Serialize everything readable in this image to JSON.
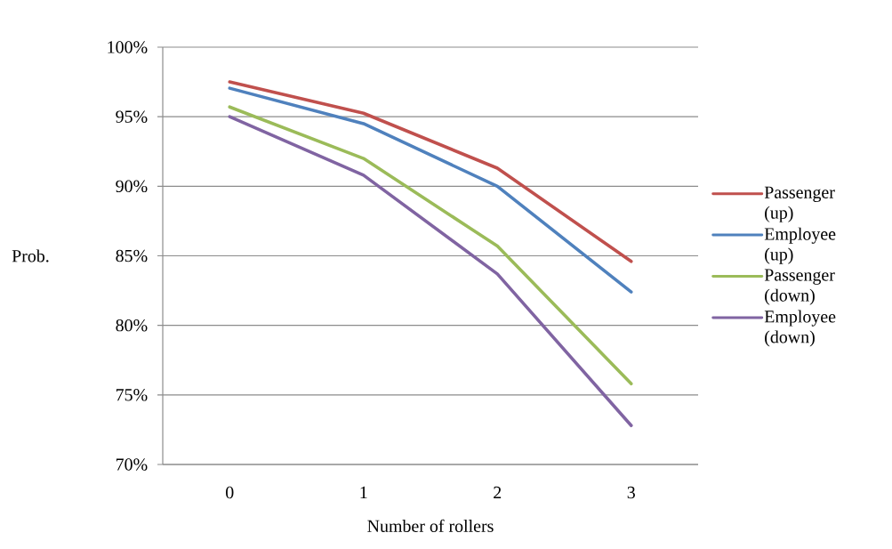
{
  "chart_data": {
    "type": "line",
    "xlabel": "Number of rollers",
    "ylabel": "Prob.",
    "categories": [
      "0",
      "1",
      "2",
      "3"
    ],
    "series": [
      {
        "name": "Passenger (up)",
        "color": "#c0504d",
        "values": [
          97.5,
          95.25,
          91.3,
          84.6
        ]
      },
      {
        "name": "Employee (up)",
        "color": "#4f81bd",
        "values": [
          97.05,
          94.5,
          90.0,
          82.4
        ]
      },
      {
        "name": "Passenger (down)",
        "color": "#9bbb59",
        "values": [
          95.7,
          92.0,
          85.7,
          75.8
        ]
      },
      {
        "name": "Employee (down)",
        "color": "#8064a2",
        "values": [
          95.0,
          90.8,
          83.7,
          72.8
        ]
      }
    ],
    "ylim": [
      70,
      100
    ],
    "yticks": [
      {
        "value": 70,
        "label": "70%"
      },
      {
        "value": 75,
        "label": "75%"
      },
      {
        "value": 80,
        "label": "80%"
      },
      {
        "value": 85,
        "label": "85%"
      },
      {
        "value": 90,
        "label": "90%"
      },
      {
        "value": 95,
        "label": "95%"
      },
      {
        "value": 100,
        "label": "100%"
      }
    ],
    "grid": "y",
    "legend": "right",
    "marker": "none",
    "line_style": "solid"
  }
}
